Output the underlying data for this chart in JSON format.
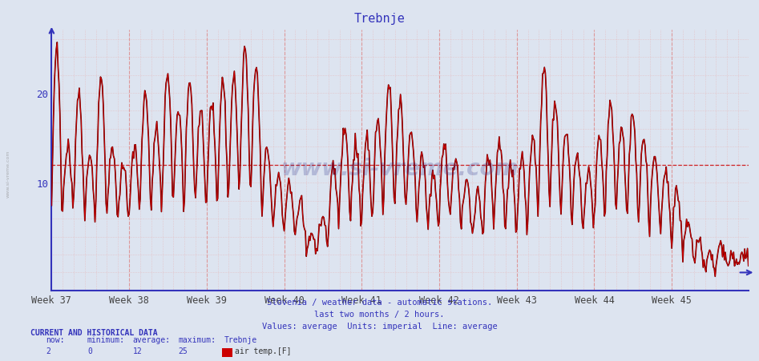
{
  "title": "Trebnje",
  "title_color": "#3333bb",
  "weeks": [
    "Week 37",
    "Week 38",
    "Week 39",
    "Week 40",
    "Week 41",
    "Week 42",
    "Week 43",
    "Week 44",
    "Week 45"
  ],
  "ylim_min": -2,
  "ylim_max": 27,
  "yticks": [
    10,
    20
  ],
  "average_line": 12,
  "line_color": "#cc0000",
  "line_color_dark": "#550000",
  "bg_color": "#dde4f0",
  "axis_color": "#3333bb",
  "footer_lines": [
    "Slovenia / weather data - automatic stations.",
    "last two months / 2 hours.",
    "Values: average  Units: imperial  Line: average"
  ],
  "footer_color": "#3333bb",
  "stats_label": "CURRENT AND HISTORICAL DATA",
  "stats_color": "#3333bb",
  "now": 2,
  "minimum": 0,
  "average": 12,
  "maximum": 25,
  "station_name": "Trebnje",
  "series_label": "air temp.[F]",
  "legend_color": "#cc0000"
}
